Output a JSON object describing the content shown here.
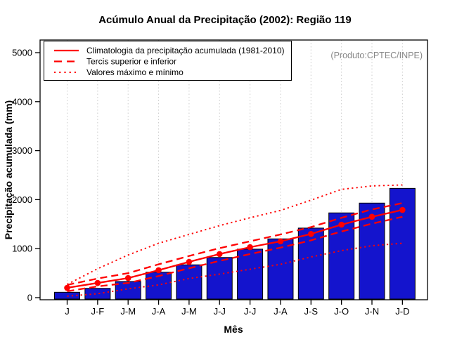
{
  "page": {
    "title": "Acúmulo Anual da Precipitação (2002): Região 119",
    "product_credit": "(Produto:CPTEC/INPE)"
  },
  "legend": {
    "items": [
      {
        "label": "Climatologia da precipitação acumulada (1981-2010)",
        "style": "solid"
      },
      {
        "label": "Tercis superior e inferior",
        "style": "dashed"
      },
      {
        "label": "Valores máximo e mínimo",
        "style": "dotted"
      }
    ]
  },
  "chart_data": {
    "type": "bar",
    "title": "Acúmulo Anual da Precipitação (2002): Região 119",
    "xlabel": "Mês",
    "ylabel": "Precipitação acumulada (mm)",
    "annotation": "(Produto:CPTEC/INPE)",
    "ylim": [
      0,
      5000
    ],
    "yticks": [
      0,
      1000,
      2000,
      3000,
      4000,
      5000
    ],
    "grid": "vertical-dotted",
    "legend_position": "top-left",
    "categories": [
      "J",
      "J-F",
      "J-M",
      "J-A",
      "J-M",
      "J-J",
      "J-J",
      "J-A",
      "J-S",
      "J-O",
      "J-N",
      "J-D"
    ],
    "bar_series": {
      "name": "Precipitação acumulada 2002",
      "color": "#1414cd",
      "values": [
        110,
        190,
        330,
        520,
        670,
        820,
        990,
        1200,
        1420,
        1730,
        1930,
        2230
      ]
    },
    "line_series": [
      {
        "name": "Valor máximo",
        "style": "dotted",
        "marker": false,
        "values": [
          270,
          590,
          870,
          1110,
          1290,
          1470,
          1630,
          1780,
          1990,
          2210,
          2280,
          2300
        ]
      },
      {
        "name": "Valor mínimo",
        "style": "dotted",
        "marker": false,
        "values": [
          30,
          80,
          180,
          260,
          390,
          480,
          580,
          680,
          830,
          960,
          1060,
          1110
        ]
      },
      {
        "name": "Tercil superior",
        "style": "dashed",
        "marker": false,
        "values": [
          260,
          390,
          500,
          680,
          850,
          1010,
          1150,
          1290,
          1440,
          1630,
          1800,
          1930
        ]
      },
      {
        "name": "Tercil inferior",
        "style": "dashed",
        "marker": false,
        "values": [
          130,
          230,
          300,
          440,
          600,
          750,
          890,
          1020,
          1170,
          1350,
          1510,
          1650
        ]
      },
      {
        "name": "Climatologia da precipitação acumulada (1981-2010)",
        "style": "solid",
        "marker": true,
        "values": [
          200,
          300,
          400,
          560,
          730,
          890,
          1030,
          1150,
          1300,
          1490,
          1650,
          1790
        ]
      }
    ],
    "colors": {
      "bar": "#1414cd",
      "bar_border": "#000000",
      "line": "#ff0000",
      "grid": "#cccccc",
      "credit": "#878787"
    }
  }
}
